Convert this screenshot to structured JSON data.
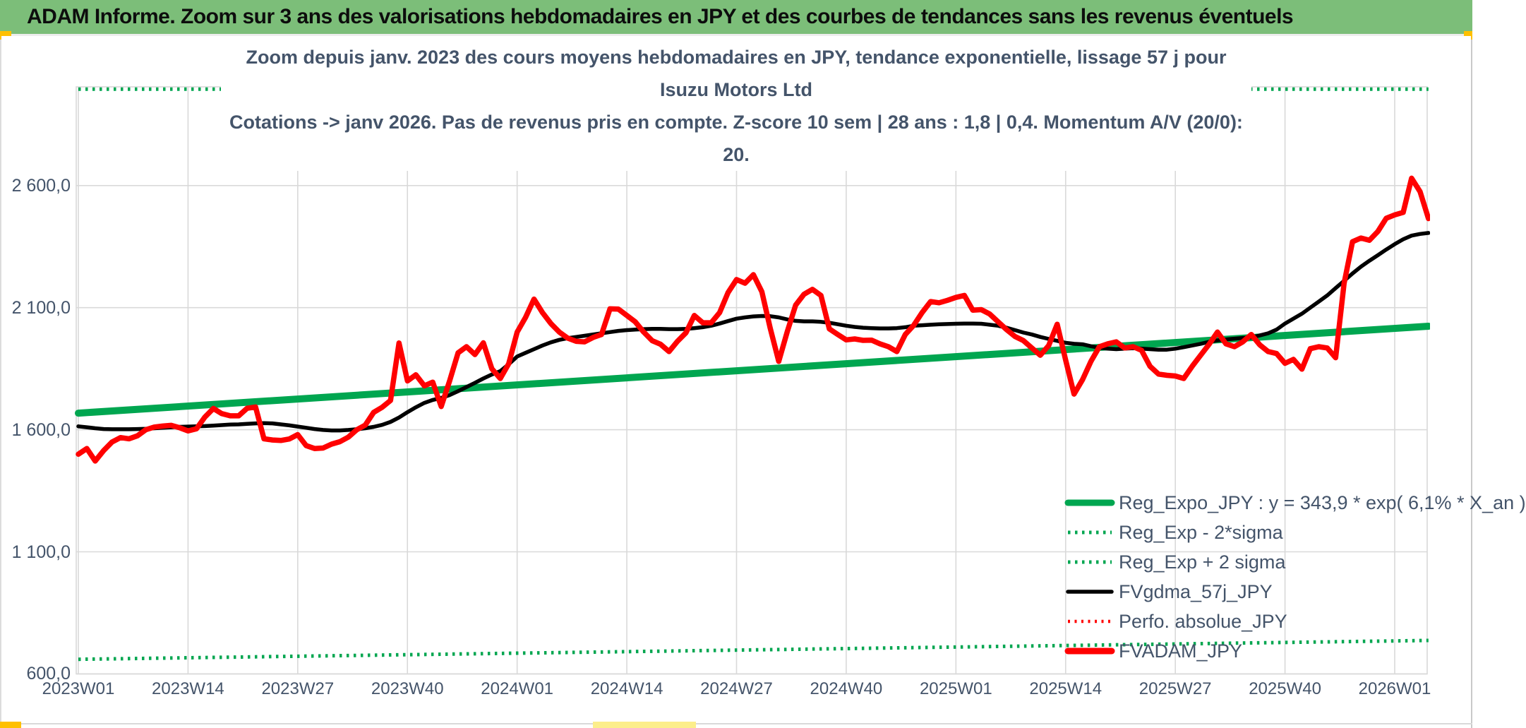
{
  "banner": {
    "text": "ADAM Informe. Zoom sur 3 ans des valorisations hebdomadaires en JPY et des courbes de tendances sans les revenus éventuels",
    "bg_color": "#7CBE79"
  },
  "title": {
    "line1": "Zoom depuis janv. 2023 des cours moyens hebdomadaires en JPY, tendance exponentielle, lissage 57 j pour Isuzu Motors Ltd",
    "line2": "Cotations -> janv 2026. Pas de revenus pris en compte. Z-score 10 sem | 28 ans : 1,8 | 0,4. Momentum A/V (20/0): 20."
  },
  "colors": {
    "banner_green": "#7CBE79",
    "series_green": "#00A650",
    "series_red": "#FF0000",
    "series_black": "#000000",
    "text_blue_gray": "#44546A",
    "gridline": "#D9D9D9",
    "accent_yellow": "#FFC000",
    "accent_pale_yellow": "#FCEE8B"
  },
  "legend": {
    "items": [
      {
        "label": "Reg_Expo_JPY : y = 343,9 * exp( 6,1% *  X_an )",
        "swatch": "green-solid-thick"
      },
      {
        "label": "Reg_Exp - 2*sigma",
        "swatch": "green-dotted"
      },
      {
        "label": "Reg_Exp + 2 sigma",
        "swatch": "green-dotted"
      },
      {
        "label": "FVgdma_57j_JPY",
        "swatch": "black-solid"
      },
      {
        "label": "Perfo. absolue_JPY",
        "swatch": "red-dotted"
      },
      {
        "label": "FVADAM_JPY",
        "swatch": "red-solid-thick"
      }
    ]
  },
  "chart_data": {
    "type": "line",
    "title": "Zoom depuis janv. 2023 des cours moyens hebdomadaires en JPY, tendance exponentielle, lissage 57 j pour Isuzu Motors Ltd",
    "subtitle": "Cotations -> janv 2026. Pas de revenus pris en compte. Z-score 10 sem | 28 ans : 1,8 | 0,4. Momentum A/V (20/0): 20.",
    "x_axis_unit": "ISO week",
    "x_tick_labels": [
      "2023W01",
      "2023W14",
      "2023W27",
      "2023W40",
      "2024W01",
      "2024W14",
      "2024W27",
      "2024W40",
      "2025W01",
      "2025W14",
      "2025W27",
      "2025W40",
      "2026W01"
    ],
    "x_tick_weeks": [
      1,
      14,
      27,
      40,
      53,
      66,
      79,
      92,
      105,
      118,
      131,
      144,
      157
    ],
    "n_weeks": 161,
    "y_tick_labels": [
      "2 600,0",
      "2 100,0",
      "1 600,0",
      "1 100,0",
      "600,0"
    ],
    "y_tick_values": [
      2600,
      2100,
      1600,
      1100,
      600
    ],
    "ylim_visible": [
      600,
      3000
    ],
    "grid": true,
    "legend_position": "inside-bottom-right",
    "series": [
      {
        "name": "Reg_Exp + 2 sigma",
        "style": "dotted",
        "color": "#00A650",
        "width": 5,
        "note": "clipped at top of plot area, visible flat along upper edge",
        "start": 2995,
        "end": 2995
      },
      {
        "name": "Reg_Exp - 2*sigma",
        "style": "dotted",
        "color": "#00A650",
        "width": 5,
        "start": 660,
        "end": 737
      },
      {
        "name": "Reg_Expo_JPY",
        "equation": "y = 343,9 * exp( 6,1% * X_an )",
        "style": "solid",
        "color": "#00A650",
        "width": 10,
        "start": 1668,
        "end": 2024
      },
      {
        "name": "Perfo. absolue_JPY",
        "style": "dotted",
        "color": "#FF0000",
        "width": 4,
        "visible_in_plot": false
      },
      {
        "name": "FVgdma_57j_JPY",
        "style": "solid",
        "color": "#000000",
        "width": 5.5,
        "values": [
          1614,
          1610,
          1606,
          1603,
          1602,
          1602,
          1602,
          1603,
          1604,
          1606,
          1608,
          1610,
          1612,
          1613,
          1614,
          1615,
          1617,
          1619,
          1621,
          1622,
          1624,
          1626,
          1627,
          1626,
          1622,
          1618,
          1613,
          1608,
          1603,
          1599,
          1597,
          1597,
          1599,
          1602,
          1606,
          1612,
          1620,
          1632,
          1650,
          1672,
          1692,
          1710,
          1722,
          1730,
          1742,
          1758,
          1775,
          1792,
          1810,
          1826,
          1840,
          1868,
          1900,
          1915,
          1930,
          1945,
          1958,
          1968,
          1975,
          1980,
          1985,
          1990,
          1995,
          2000,
          2005,
          2008,
          2010,
          2012,
          2013,
          2013,
          2012,
          2012,
          2013,
          2016,
          2020,
          2026,
          2035,
          2045,
          2055,
          2060,
          2064,
          2066,
          2065,
          2060,
          2052,
          2046,
          2044,
          2044,
          2042,
          2038,
          2032,
          2026,
          2021,
          2018,
          2016,
          2015,
          2015,
          2016,
          2020,
          2026,
          2028,
          2030,
          2032,
          2033,
          2034,
          2035,
          2035,
          2034,
          2030,
          2026,
          2018,
          2008,
          1998,
          1990,
          1980,
          1972,
          1964,
          1956,
          1952,
          1950,
          1942,
          1936,
          1932,
          1930,
          1932,
          1934,
          1932,
          1930,
          1928,
          1928,
          1932,
          1938,
          1945,
          1952,
          1960,
          1966,
          1970,
          1973,
          1976,
          1978,
          1986,
          1995,
          2010,
          2035,
          2055,
          2075,
          2100,
          2125,
          2150,
          2180,
          2210,
          2240,
          2268,
          2292,
          2315,
          2338,
          2360,
          2380,
          2395,
          2402,
          2406
        ]
      },
      {
        "name": "FVADAM_JPY",
        "style": "solid",
        "color": "#FF0000",
        "width": 7.5,
        "values": [
          1500,
          1523,
          1472,
          1515,
          1550,
          1568,
          1563,
          1575,
          1600,
          1611,
          1615,
          1618,
          1608,
          1595,
          1604,
          1652,
          1687,
          1666,
          1657,
          1657,
          1688,
          1693,
          1563,
          1558,
          1556,
          1562,
          1580,
          1535,
          1523,
          1525,
          1541,
          1551,
          1570,
          1600,
          1619,
          1671,
          1692,
          1720,
          1955,
          1800,
          1825,
          1780,
          1795,
          1695,
          1800,
          1915,
          1940,
          1908,
          1956,
          1850,
          1810,
          1870,
          2000,
          2060,
          2135,
          2080,
          2035,
          2000,
          1975,
          1962,
          1960,
          1978,
          1990,
          2095,
          2094,
          2068,
          2042,
          2000,
          1965,
          1950,
          1920,
          1962,
          1997,
          2068,
          2038,
          2038,
          2080,
          2162,
          2215,
          2200,
          2235,
          2165,
          2015,
          1880,
          2000,
          2110,
          2155,
          2175,
          2150,
          2013,
          1990,
          1968,
          1972,
          1966,
          1967,
          1952,
          1940,
          1920,
          1990,
          2028,
          2080,
          2125,
          2120,
          2130,
          2142,
          2150,
          2090,
          2092,
          2074,
          2042,
          2010,
          1982,
          1965,
          1935,
          1905,
          1945,
          2032,
          1885,
          1746,
          1805,
          1880,
          1940,
          1952,
          1960,
          1935,
          1940,
          1925,
          1860,
          1828,
          1823,
          1820,
          1810,
          1860,
          1905,
          1950,
          2000,
          1952,
          1940,
          1960,
          1990,
          1948,
          1920,
          1912,
          1872,
          1888,
          1848,
          1932,
          1940,
          1935,
          1895,
          2200,
          2370,
          2385,
          2376,
          2412,
          2466,
          2480,
          2490,
          2630,
          2575,
          2465
        ]
      }
    ]
  }
}
